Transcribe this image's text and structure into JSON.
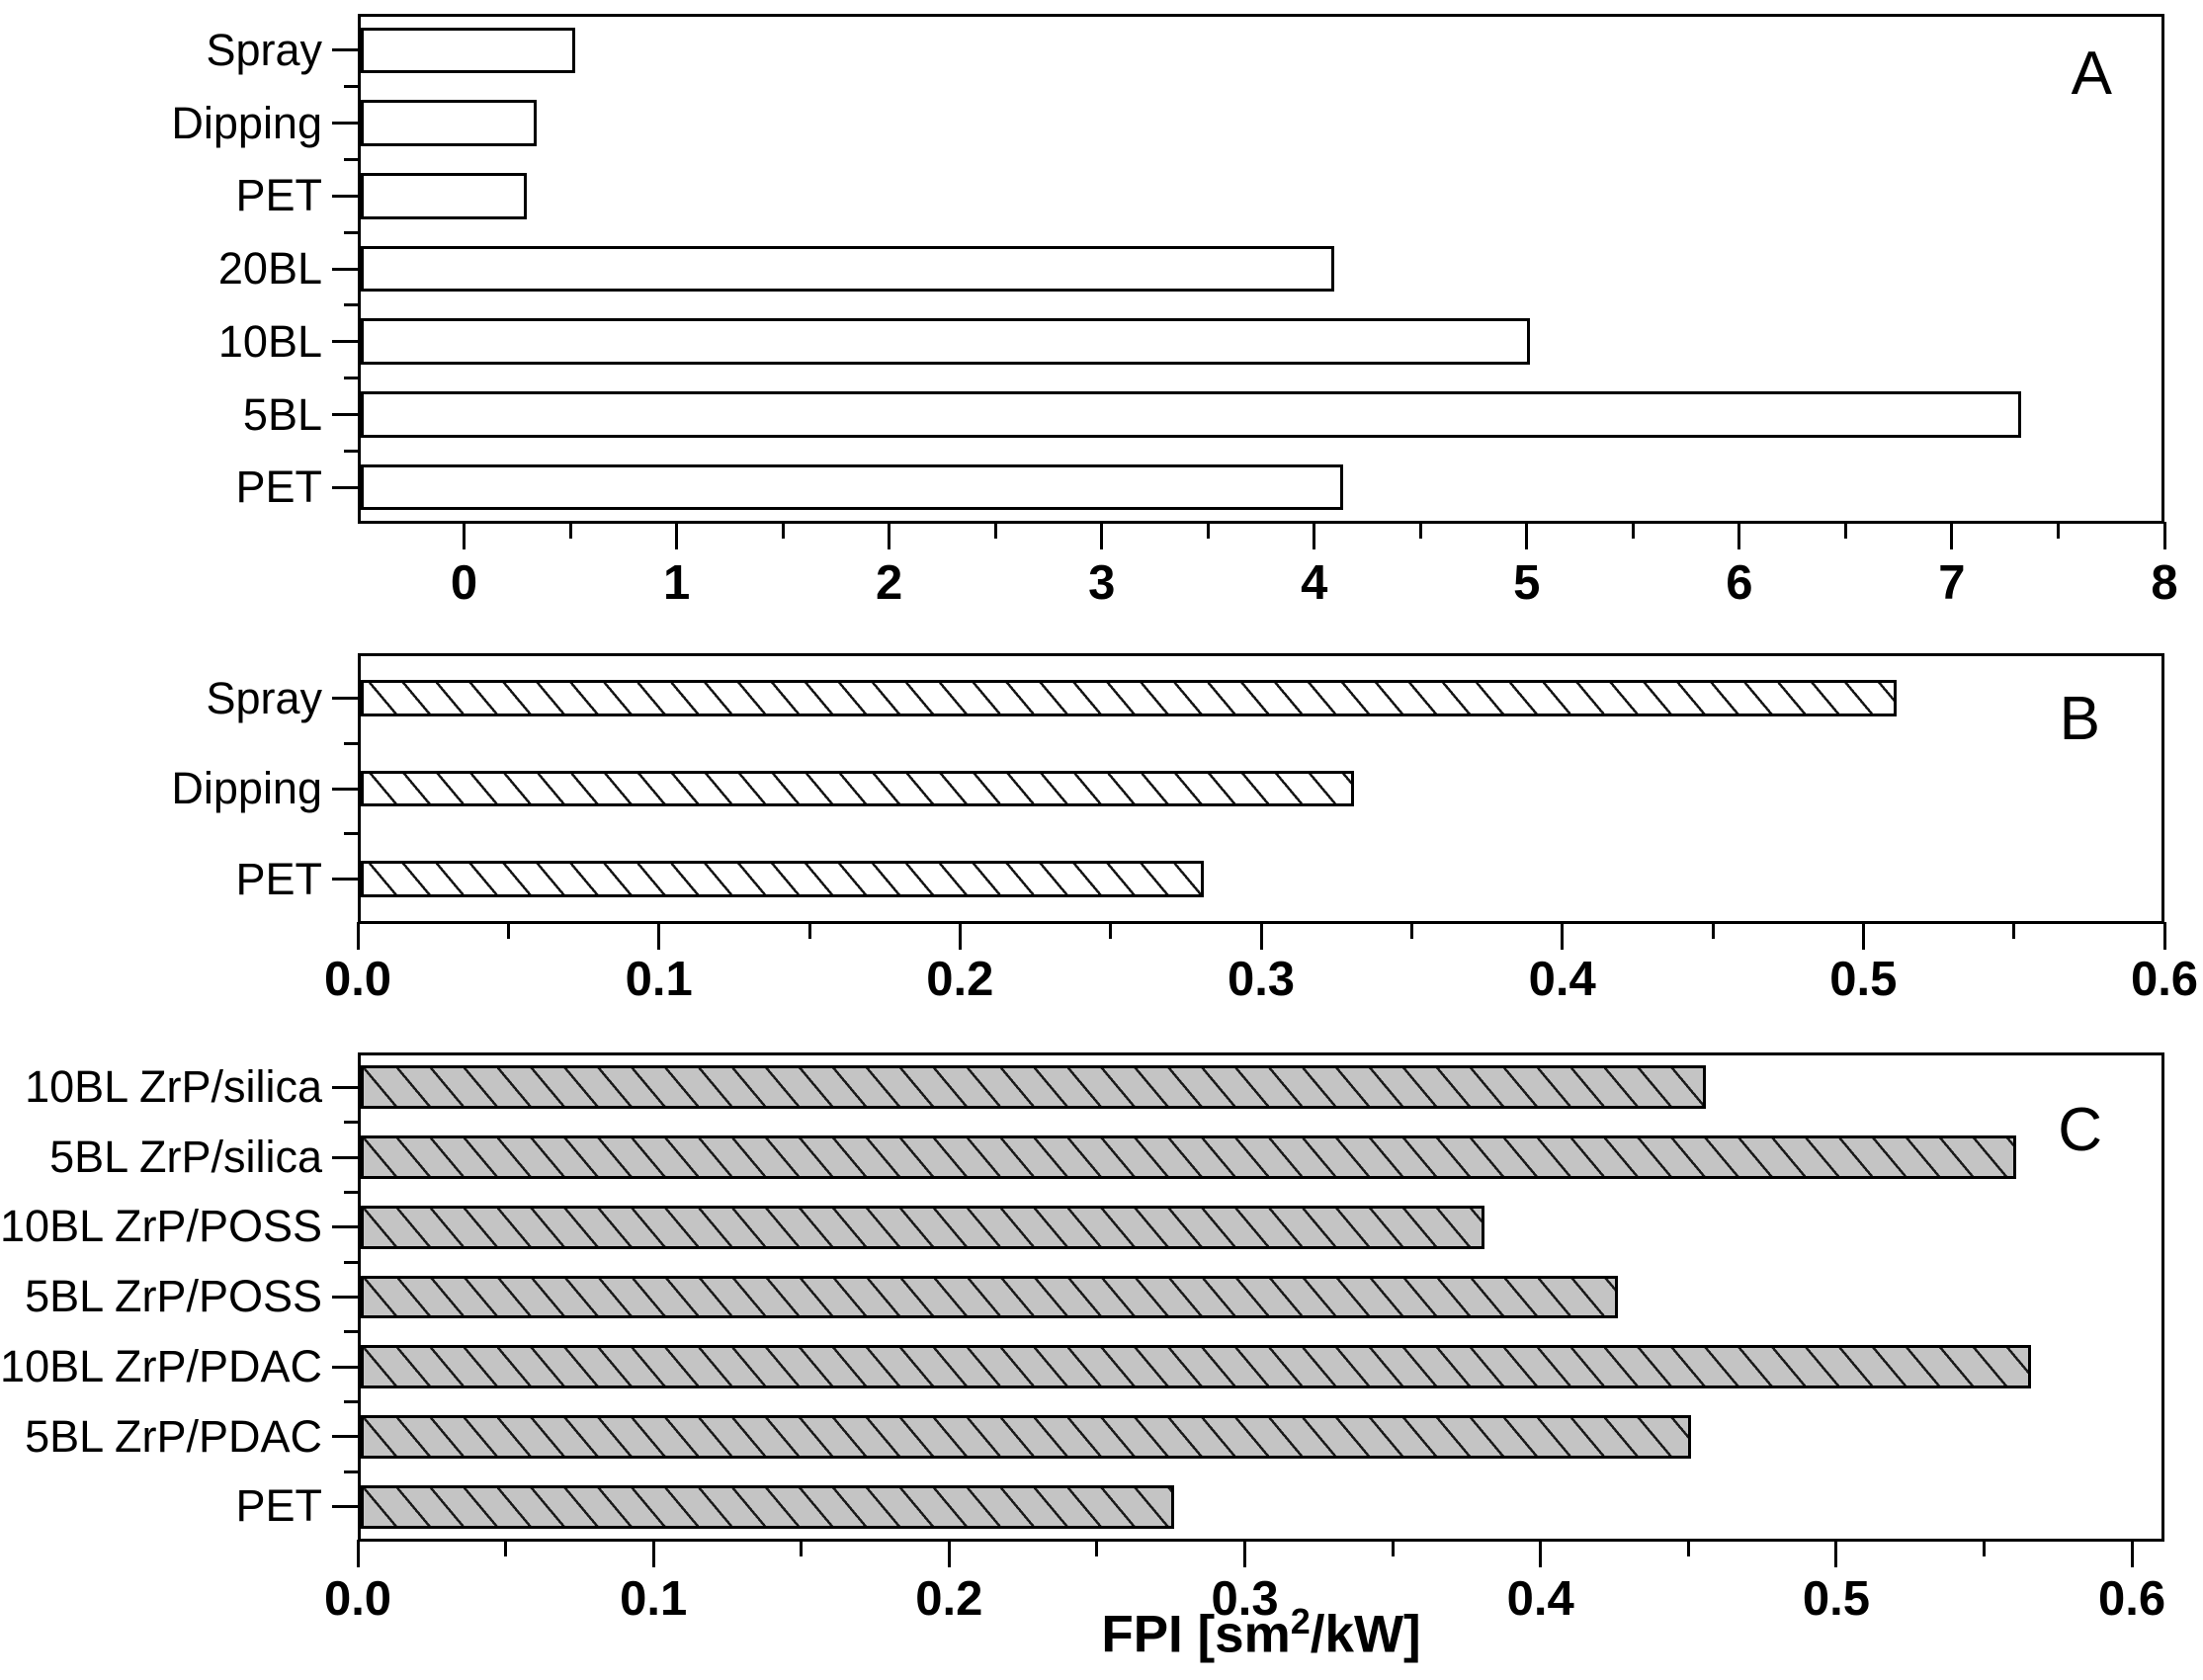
{
  "figure": {
    "xlabel": {
      "prefix": "FPI [sm",
      "sup": "2",
      "suffix": "/kW]"
    }
  },
  "chart_data": [
    {
      "id": "A",
      "panel_label": "A",
      "type": "bar",
      "orientation": "horizontal",
      "categories_top_to_bottom": [
        "Spray",
        "Dipping",
        "PET",
        "20BL",
        "10BL",
        "5BL",
        "PET"
      ],
      "values": [
        0.51,
        0.33,
        0.28,
        4.08,
        5.0,
        7.31,
        4.12
      ],
      "xlim": [
        -0.5,
        8
      ],
      "xticks": [
        {
          "v": 0,
          "label": "0"
        },
        {
          "v": 1,
          "label": "1"
        },
        {
          "v": 2,
          "label": "2"
        },
        {
          "v": 3,
          "label": "3"
        },
        {
          "v": 4,
          "label": "4"
        },
        {
          "v": 5,
          "label": "5"
        },
        {
          "v": 6,
          "label": "6"
        },
        {
          "v": 7,
          "label": "7"
        },
        {
          "v": 8,
          "label": "8"
        }
      ],
      "xticks_minor": [
        0.5,
        1.5,
        2.5,
        3.5,
        4.5,
        5.5,
        6.5,
        7.5
      ],
      "bar_style": "plain-white",
      "grid": false,
      "legend": false
    },
    {
      "id": "B",
      "panel_label": "B",
      "type": "bar",
      "orientation": "horizontal",
      "categories_top_to_bottom": [
        "Spray",
        "Dipping",
        "PET"
      ],
      "values": [
        0.51,
        0.33,
        0.28
      ],
      "xlim": [
        0,
        0.6
      ],
      "xticks": [
        {
          "v": 0.0,
          "label": "0.0"
        },
        {
          "v": 0.1,
          "label": "0.1"
        },
        {
          "v": 0.2,
          "label": "0.2"
        },
        {
          "v": 0.3,
          "label": "0.3"
        },
        {
          "v": 0.4,
          "label": "0.4"
        },
        {
          "v": 0.5,
          "label": "0.5"
        },
        {
          "v": 0.6,
          "label": "0.6"
        }
      ],
      "xticks_minor": [
        0.05,
        0.15,
        0.25,
        0.35,
        0.45,
        0.55
      ],
      "bar_style": "hatched-white",
      "grid": false,
      "legend": false
    },
    {
      "id": "C",
      "panel_label": "C",
      "type": "bar",
      "orientation": "horizontal",
      "categories_top_to_bottom": [
        "10BL ZrP/silica",
        "5BL ZrP/silica",
        "10BL ZrP/POSS",
        "5BL ZrP/POSS",
        "10BL ZrP/PDAC",
        "5BL ZrP/PDAC",
        "PET"
      ],
      "values": [
        0.455,
        0.56,
        0.38,
        0.425,
        0.565,
        0.45,
        0.275
      ],
      "xlim": [
        0,
        0.611
      ],
      "xticks": [
        {
          "v": 0.0,
          "label": "0.0"
        },
        {
          "v": 0.1,
          "label": "0.1"
        },
        {
          "v": 0.2,
          "label": "0.2"
        },
        {
          "v": 0.3,
          "label": "0.3"
        },
        {
          "v": 0.4,
          "label": "0.4"
        },
        {
          "v": 0.5,
          "label": "0.5"
        },
        {
          "v": 0.6,
          "label": "0.6"
        }
      ],
      "xticks_minor": [
        0.05,
        0.15,
        0.25,
        0.35,
        0.45,
        0.55
      ],
      "bar_style": "hatched-gray",
      "xlabel_attached": true,
      "grid": false,
      "legend": false
    }
  ]
}
